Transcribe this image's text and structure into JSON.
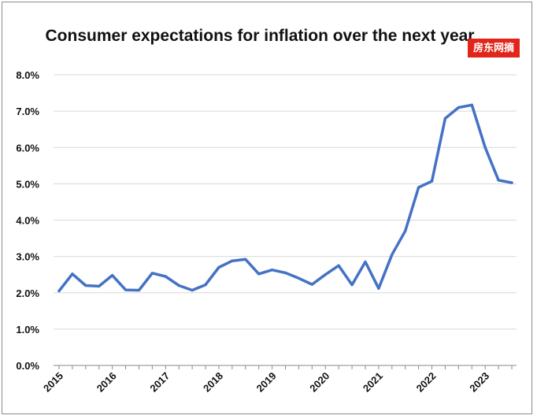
{
  "watermark": "房东网摘",
  "chart_data": {
    "type": "line",
    "title": "Consumer expectations for inflation over the next year",
    "xlabel": "",
    "ylabel": "",
    "ylim": [
      0,
      8
    ],
    "ytick_labels": [
      "0.0%",
      "1.0%",
      "2.0%",
      "3.0%",
      "4.0%",
      "5.0%",
      "6.0%",
      "7.0%",
      "8.0%"
    ],
    "xtick_labels": [
      "2015",
      "2016",
      "2017",
      "2018",
      "2019",
      "2020",
      "2021",
      "2022",
      "2023"
    ],
    "grid": true,
    "series_color": "#4472c4",
    "x": [
      "2015-Q1",
      "2015-Q2",
      "2015-Q3",
      "2015-Q4",
      "2016-Q1",
      "2016-Q2",
      "2016-Q3",
      "2016-Q4",
      "2017-Q1",
      "2017-Q2",
      "2017-Q3",
      "2017-Q4",
      "2018-Q1",
      "2018-Q2",
      "2018-Q3",
      "2018-Q4",
      "2019-Q1",
      "2019-Q2",
      "2019-Q3",
      "2019-Q4",
      "2020-Q1",
      "2020-Q2",
      "2020-Q3",
      "2020-Q4",
      "2021-Q1",
      "2021-Q2",
      "2021-Q3",
      "2021-Q4",
      "2022-Q1",
      "2022-Q2",
      "2022-Q3",
      "2022-Q4",
      "2023-Q1",
      "2023-Q2",
      "2023-Q3"
    ],
    "series": [
      {
        "values": [
          2.05,
          2.52,
          2.2,
          2.18,
          2.48,
          2.08,
          2.07,
          2.54,
          2.45,
          2.2,
          2.07,
          2.22,
          2.7,
          2.88,
          2.92,
          2.52,
          2.63,
          2.55,
          2.4,
          2.23,
          2.5,
          2.75,
          2.22,
          2.85,
          2.12,
          3.05,
          3.7,
          4.9,
          5.07,
          6.8,
          7.1,
          7.17,
          6.0,
          5.1,
          5.03
        ]
      }
    ]
  }
}
